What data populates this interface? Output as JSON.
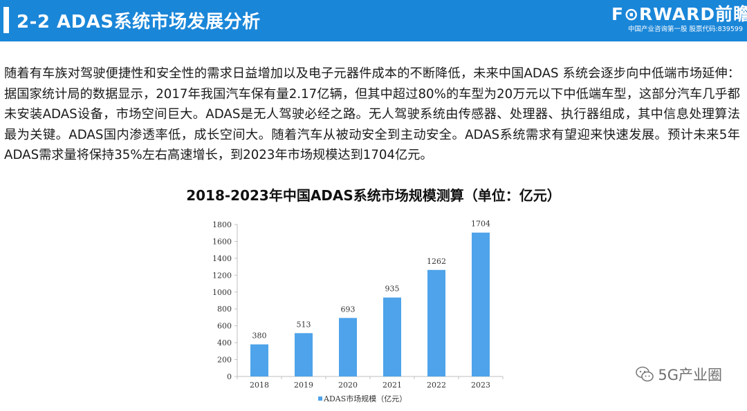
{
  "header": {
    "title": "2-2 ADAS系统市场发展分析",
    "logo_text": "F⊙RWARD前瞻",
    "logo_subtitle": "中国产业咨询第一股  股票代码:839599"
  },
  "body": {
    "paragraph": "随着有车族对驾驶便捷性和安全性的需求日益增加以及电子元器件成本的不断降低，未来中国ADAS 系统会逐步向中低端市场延伸：据国家统计局的数据显示，2017年我国汽车保有量2.17亿辆，但其中超过80%的车型为20万元以下中低端车型，这部分汽车几乎都未安装ADAS设备，市场空间巨大。ADAS是无人驾驶必经之路。无人驾驶系统由传感器、处理器、执行器组成，其中信息处理算法最为关键。ADAS国内渗透率低，成长空间大。随着汽车从被动安全到主动安全。ADAS系统需求有望迎来快速发展。预计未来5年ADAS需求量将保持35%左右高速增长，到2023年市场规模达到1704亿元。"
  },
  "chart_data": {
    "type": "bar",
    "title": "2018-2023年中国ADAS系统市场规模测算（单位：亿元）",
    "categories": [
      "2018",
      "2019",
      "2020",
      "2021",
      "2022",
      "2023"
    ],
    "series": [
      {
        "name": "ADAS市场规模（亿元）",
        "values": [
          380,
          513,
          693,
          935,
          1262,
          1704
        ],
        "color": "#4ea3ea"
      }
    ],
    "ylim": [
      0,
      1800
    ],
    "yticks": [
      "0",
      "200",
      "400",
      "600",
      "800",
      "1000",
      "1200",
      "1400",
      "1600",
      "1800"
    ],
    "data_labels": [
      "380",
      "513",
      "693",
      "935",
      "1262",
      "1704"
    ],
    "legend_position": "bottom",
    "grid": false
  },
  "watermark": {
    "text": "5G产业圈",
    "icon": "wechat-icon"
  }
}
